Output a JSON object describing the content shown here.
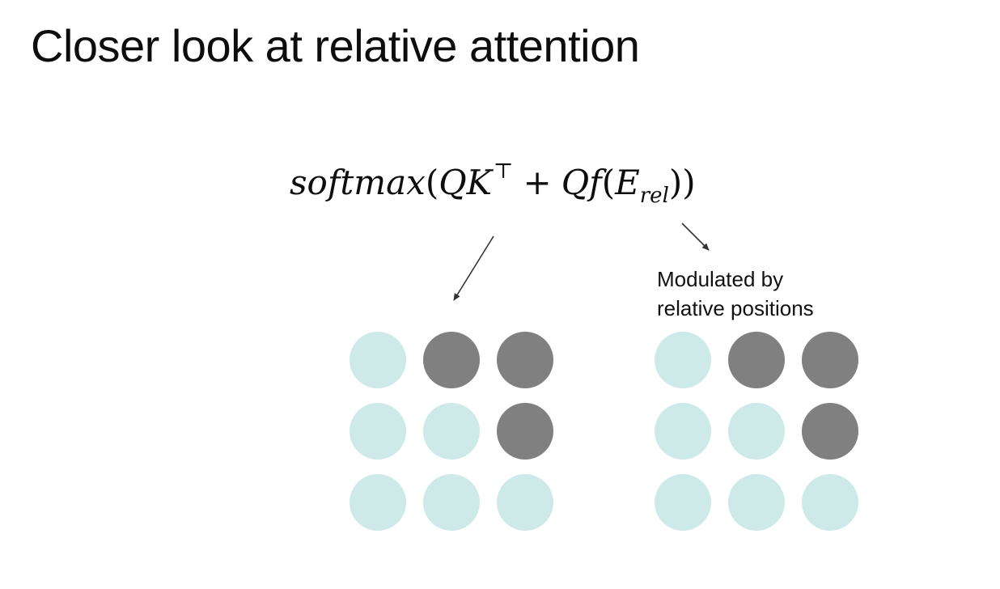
{
  "title": "Closer look at relative attention",
  "formula": {
    "fn": "softmax",
    "open": "(",
    "q1": "Q",
    "k": "K",
    "transpose": "⊤",
    "plus": "+",
    "q2": "Q",
    "f": "f",
    "open2": "(",
    "e": "E",
    "sub": "rel",
    "close": "))"
  },
  "annotation": {
    "line1": "Modulated by",
    "line2": "relative positions"
  },
  "colors": {
    "light": "#cde9e8",
    "dark": "#808080"
  },
  "grids": [
    {
      "name": "content-attention-grid",
      "rows": [
        [
          "light",
          "dark",
          "dark"
        ],
        [
          "light",
          "light",
          "dark"
        ],
        [
          "light",
          "light",
          "light"
        ]
      ]
    },
    {
      "name": "relative-attention-grid",
      "rows": [
        [
          "light",
          "dark",
          "dark"
        ],
        [
          "light",
          "light",
          "dark"
        ],
        [
          "light",
          "light",
          "light"
        ]
      ]
    }
  ]
}
